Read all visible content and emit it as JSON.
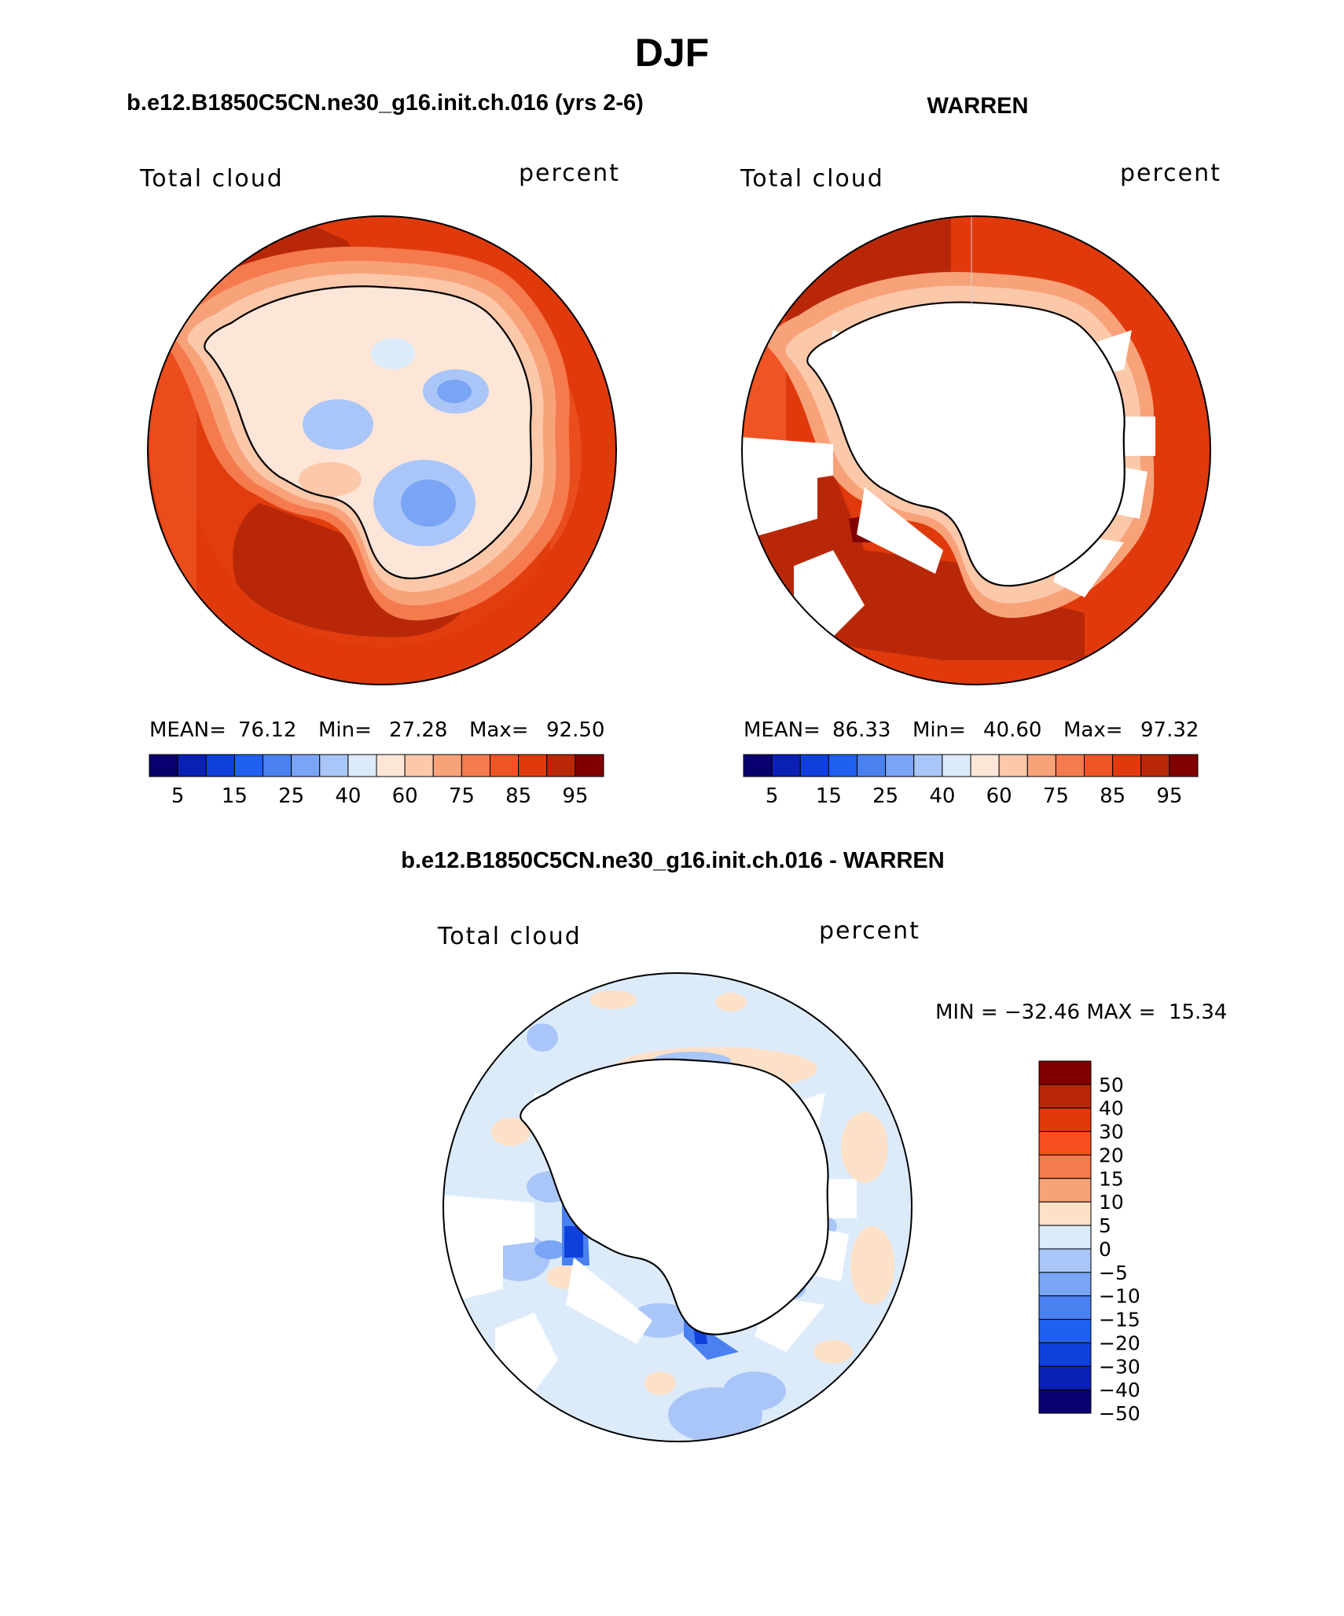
{
  "page_title": "DJF",
  "chart_data": [
    {
      "type": "heatmap",
      "projection": "south-polar-stereographic",
      "title": "b.e12.B1850C5CN.ne30_g16.init.ch.016 (yrs 2-6)",
      "left_label": "Total cloud",
      "right_label": "percent",
      "stats": {
        "mean_label": "MEAN=",
        "mean": "76.12",
        "min_label": "Min=",
        "min": "27.28",
        "max_label": "Max=",
        "max": "92.50"
      },
      "colorbar_ticks": [
        "5",
        "15",
        "25",
        "40",
        "60",
        "75",
        "85",
        "95"
      ]
    },
    {
      "type": "heatmap",
      "projection": "south-polar-stereographic",
      "title": "WARREN",
      "left_label": "Total cloud",
      "right_label": "percent",
      "stats": {
        "mean_label": "MEAN=",
        "mean": "86.33",
        "min_label": "Min=",
        "min": "40.60",
        "max_label": "Max=",
        "max": "97.32"
      },
      "colorbar_ticks": [
        "5",
        "15",
        "25",
        "40",
        "60",
        "75",
        "85",
        "95"
      ]
    },
    {
      "type": "heatmap",
      "projection": "south-polar-stereographic",
      "title": "b.e12.B1850C5CN.ne30_g16.init.ch.016 - WARREN",
      "left_label": "Total cloud",
      "right_label": "percent",
      "minmax_text": "MIN = −32.46 MAX =  15.34",
      "min": -32.46,
      "max": 15.34,
      "colorbar_labels": [
        "50",
        "40",
        "30",
        "20",
        "15",
        "10",
        "5",
        "0",
        "−5",
        "−10",
        "−15",
        "−20",
        "−30",
        "−40",
        "−50"
      ]
    }
  ],
  "colors": {
    "abs_scale": [
      "#08006e",
      "#0a20b4",
      "#1040dc",
      "#2060f0",
      "#4a80f0",
      "#7aa4f4",
      "#aac6f8",
      "#dcebfa",
      "#fde6d8",
      "#fbc8aa",
      "#f8a27a",
      "#f57a4e",
      "#ee5424",
      "#e03a0c",
      "#b82808",
      "#800000"
    ],
    "diff_scale": [
      "#800000",
      "#b82808",
      "#e03a0c",
      "#f5501e",
      "#f57a4e",
      "#f8a27a",
      "#fde0c8",
      "#dcebfa",
      "#aac6f8",
      "#7aa4f4",
      "#4a80f0",
      "#2060f0",
      "#1040dc",
      "#0a20b4",
      "#08006e"
    ],
    "land": "#ffffff",
    "outline": "#000000"
  }
}
